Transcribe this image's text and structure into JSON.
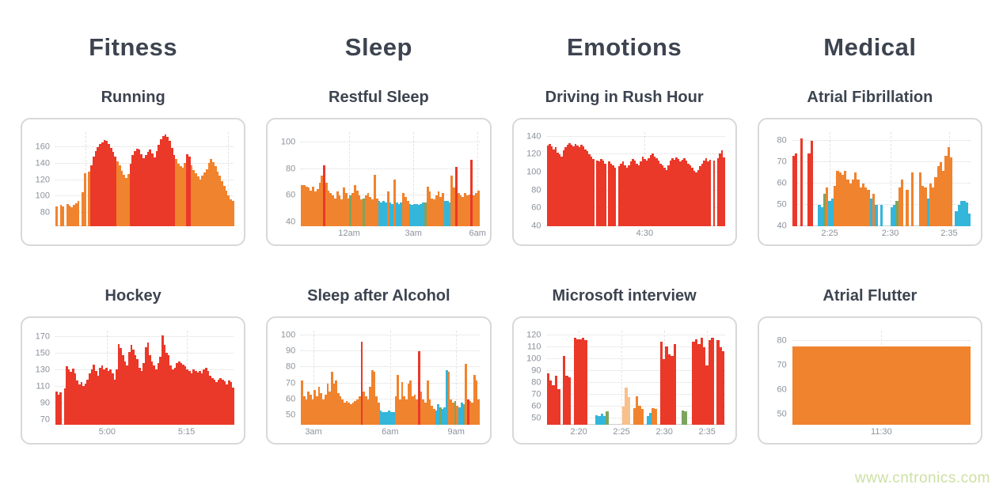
{
  "page": {
    "watermark": "www.cntronics.com",
    "watermark_color": "#cde0a4",
    "background": "#ffffff"
  },
  "categories": [
    "Fitness",
    "Sleep",
    "Emotions",
    "Medical"
  ],
  "colors": {
    "r": "#ea3829",
    "o": "#f0832e",
    "b": "#33b6da",
    "t": "#7da45f",
    "l": "#f8c08a",
    "grid": "#d9d9d9",
    "axis_label": "#8b929b",
    "title": "#3d4450",
    "card_border": "#d8d8d8"
  },
  "chart_data": [
    {
      "type": "bar",
      "title": "Running",
      "category": "Fitness",
      "ylim": [
        64,
        178
      ],
      "yticks": [
        80,
        100,
        120,
        140,
        160
      ],
      "xticks": [
        {
          "pos": 0.17,
          "label": ""
        },
        {
          "pos": 0.97,
          "label": ""
        }
      ],
      "values": [
        88,
        null,
        90,
        88,
        null,
        91,
        89,
        87,
        90,
        92,
        95,
        null,
        105,
        128,
        null,
        130,
        138,
        148,
        155,
        160,
        164,
        166,
        168,
        167,
        164,
        159,
        154,
        148,
        143,
        138,
        131,
        126,
        122,
        127,
        140,
        150,
        155,
        158,
        157,
        151,
        146,
        150,
        154,
        157,
        152,
        147,
        155,
        163,
        169,
        173,
        175,
        172,
        167,
        159,
        150,
        145,
        140,
        137,
        135,
        141,
        151,
        148,
        138,
        132,
        128,
        124,
        121,
        125,
        129,
        133,
        141,
        145,
        142,
        137,
        130,
        125,
        119,
        113,
        107,
        101,
        97,
        95
      ],
      "bar_colors": "o.oo.oooooo.oo.orrrrrrrrrrrroooooorrrrrrrrrrrrrrrrrrrrrooooorroooooooooooooooooooo"
    },
    {
      "type": "bar",
      "title": "Hockey",
      "category": "Fitness",
      "ylim": [
        64,
        178
      ],
      "yticks": [
        70,
        90,
        110,
        130,
        150,
        170
      ],
      "xticks": [
        {
          "pos": 0.29,
          "label": "5:00"
        },
        {
          "pos": 0.735,
          "label": "5:15"
        }
      ],
      "values": [
        104,
        100,
        103,
        null,
        108,
        135,
        131,
        128,
        132,
        126,
        118,
        113,
        116,
        111,
        114,
        119,
        126,
        131,
        137,
        129,
        123,
        133,
        136,
        131,
        133,
        129,
        131,
        126,
        119,
        131,
        162,
        157,
        148,
        141,
        136,
        152,
        161,
        155,
        148,
        144,
        133,
        129,
        139,
        158,
        164,
        148,
        141,
        136,
        131,
        139,
        146,
        172,
        161,
        151,
        148,
        136,
        131,
        133,
        139,
        141,
        139,
        137,
        135,
        131,
        129,
        126,
        131,
        129,
        127,
        129,
        126,
        131,
        133,
        129,
        123,
        121,
        119,
        116,
        119,
        121,
        119,
        117,
        113,
        118,
        116,
        109
      ],
      "bar_colors": "rrr.rrrrrrrrrrrrrrrrrrrrrrrrrrrrrrrrrrrrrrrrrrrrrrrrrrrrrrrrrrrrrrrrrrrrrrrrrrrrrrrrrr"
    },
    {
      "type": "bar",
      "title": "Restful Sleep",
      "category": "Sleep",
      "ylim": [
        37,
        108
      ],
      "yticks": [
        40,
        60,
        80,
        100
      ],
      "xticks": [
        {
          "pos": 0.27,
          "label": "12am"
        },
        {
          "pos": 0.63,
          "label": "3am"
        },
        {
          "pos": 0.99,
          "label": "6am"
        }
      ],
      "values": [
        68,
        68,
        67,
        66,
        64,
        67,
        63,
        65,
        70,
        75,
        83,
        70,
        64,
        62,
        60,
        58,
        63,
        60,
        57,
        66,
        62,
        58,
        60,
        62,
        68,
        64,
        60,
        57,
        58,
        60,
        62,
        59,
        57,
        76,
        58,
        56,
        55,
        56,
        55,
        63,
        55,
        54,
        72,
        55,
        54,
        55,
        62,
        59,
        56,
        54,
        53,
        54,
        54,
        53,
        54,
        55,
        55,
        67,
        63,
        58,
        57,
        60,
        63,
        59,
        62,
        56,
        56,
        55,
        75,
        66,
        82,
        62,
        60,
        59,
        62,
        60,
        61,
        87,
        60,
        62,
        64
      ],
      "bar_colors": "ooooooooooroooooooooootoooootoooooobbbbobbobbbooobbbbbbbtoooooooobbbooroooooorooo"
    },
    {
      "type": "bar",
      "title": "Sleep after Alcohol",
      "category": "Sleep",
      "ylim": [
        44,
        103
      ],
      "yticks": [
        50,
        60,
        70,
        80,
        90,
        100
      ],
      "xticks": [
        {
          "pos": 0.07,
          "label": "3am"
        },
        {
          "pos": 0.5,
          "label": "6am"
        },
        {
          "pos": 0.87,
          "label": "9am"
        }
      ],
      "values": [
        72,
        62,
        60,
        65,
        63,
        60,
        66,
        62,
        68,
        64,
        60,
        63,
        70,
        65,
        77,
        70,
        72,
        64,
        62,
        60,
        58,
        59,
        58,
        57,
        58,
        59,
        60,
        62,
        96,
        65,
        62,
        60,
        68,
        78,
        77,
        62,
        58,
        53,
        52,
        52,
        52,
        53,
        52,
        52,
        62,
        75,
        60,
        71,
        62,
        60,
        70,
        72,
        62,
        63,
        60,
        90,
        65,
        60,
        58,
        72,
        60,
        56,
        54,
        53,
        57,
        55,
        54,
        55,
        78,
        77,
        60,
        58,
        59,
        56,
        55,
        58,
        57,
        82,
        60,
        59,
        58,
        75,
        72,
        60
      ],
      "bar_colors": "ooooooooooooooooooooooooooooroooooooobbbbbbbooooooooooorooooooobbtbbboootobbtoroooooo"
    },
    {
      "type": "bar",
      "title": "Driving in Rush Hour",
      "category": "Emotions",
      "ylim": [
        40,
        145
      ],
      "yticks": [
        40,
        60,
        80,
        100,
        120,
        140
      ],
      "xticks": [
        {
          "pos": 0.55,
          "label": "4:30"
        }
      ],
      "values": [
        130,
        132,
        129,
        126,
        128,
        122,
        120,
        118,
        125,
        128,
        131,
        133,
        131,
        129,
        132,
        130,
        128,
        131,
        129,
        126,
        124,
        120,
        118,
        115,
        null,
        113,
        112,
        115,
        113,
        110,
        null,
        112,
        110,
        108,
        105,
        null,
        107,
        110,
        112,
        108,
        105,
        108,
        112,
        115,
        113,
        110,
        108,
        112,
        118,
        115,
        113,
        116,
        119,
        121,
        118,
        116,
        113,
        110,
        108,
        105,
        103,
        108,
        113,
        116,
        114,
        117,
        115,
        112,
        114,
        116,
        113,
        110,
        108,
        105,
        102,
        100,
        103,
        107,
        110,
        113,
        116,
        112,
        114,
        null,
        113,
        null,
        116,
        121,
        125,
        117
      ],
      "bar_colors": "rrrrrrrrrrrrrrrrrrrrrrrr.rrrrr.rrrr.rrrrrrrrrrrrrrrrrrrrrrrrrrrrrrrrrrrrrrrrrrrrrrr.r.rrrr"
    },
    {
      "type": "bar",
      "title": "Microsoft interview",
      "category": "Emotions",
      "ylim": [
        45,
        124
      ],
      "yticks": [
        50,
        60,
        70,
        80,
        90,
        100,
        110,
        120
      ],
      "xticks": [
        {
          "pos": 0.18,
          "label": "2:20"
        },
        {
          "pos": 0.42,
          "label": "2:25"
        },
        {
          "pos": 0.66,
          "label": "2:30"
        },
        {
          "pos": 0.9,
          "label": "2:35"
        }
      ],
      "values": [
        88,
        82,
        78,
        86,
        75,
        null,
        103,
        86,
        85,
        null,
        118,
        117,
        117,
        118,
        116,
        null,
        null,
        null,
        53,
        52,
        54,
        52,
        56,
        null,
        null,
        null,
        null,
        null,
        60,
        76,
        68,
        null,
        59,
        69,
        61,
        58,
        null,
        52,
        55,
        59,
        58,
        null,
        115,
        100,
        111,
        104,
        103,
        113,
        null,
        null,
        57,
        56,
        null,
        null,
        115,
        117,
        113,
        118,
        110,
        95,
        116,
        118,
        null,
        116,
        110,
        107
      ],
      "bar_colors": "rrrrr.rrr.rrrrr...bbbbt.....lll.oooo.bboo.rrrrrr..tt..rrrrrrrr.rrr"
    },
    {
      "type": "bar",
      "title": "Atrial Fibrillation",
      "category": "Medical",
      "ylim": [
        40,
        84
      ],
      "yticks": [
        40,
        50,
        60,
        70,
        80
      ],
      "xticks": [
        {
          "pos": 0.21,
          "label": "2:25"
        },
        {
          "pos": 0.55,
          "label": "2:30"
        },
        {
          "pos": 0.88,
          "label": "2:35"
        }
      ],
      "values": [
        73,
        74,
        null,
        81,
        null,
        null,
        74,
        80,
        null,
        null,
        50,
        49,
        55,
        58,
        52,
        53,
        59,
        66,
        65,
        64,
        66,
        62,
        60,
        62,
        65,
        62,
        58,
        60,
        58,
        57,
        53,
        55,
        50,
        null,
        50,
        null,
        null,
        null,
        49,
        50,
        52,
        58,
        62,
        null,
        57,
        null,
        65,
        null,
        null,
        65,
        59,
        58,
        53,
        60,
        58,
        63,
        68,
        70,
        66,
        73,
        77,
        72,
        null,
        47,
        50,
        52,
        52,
        51,
        46
      ],
      "bar_colors": "rr.r..rr..bbtobboooooooooooooobob.b...bbtoo.o.o..ooobooooooooo.bbbbbb"
    },
    {
      "type": "bar",
      "title": "Atrial Flutter",
      "category": "Medical",
      "ylim": [
        46,
        84
      ],
      "yticks": [
        50,
        60,
        70,
        80
      ],
      "xticks": [
        {
          "pos": 0.5,
          "label": "11:30"
        }
      ],
      "values": [
        77.5,
        77.5,
        77.5,
        77.5,
        77.5,
        77.5,
        77.5,
        77.5,
        77.5,
        77.5,
        77.5,
        77.5,
        77.5,
        77.5,
        77.5,
        77.5,
        77.5,
        77.5,
        77.5,
        77.5,
        77.5,
        77.5,
        77.5,
        77.5,
        77.5,
        77.5,
        77.5,
        77.5,
        77.5,
        77.5,
        77.5,
        77.5,
        77.5,
        77.5,
        77.5,
        77.5,
        77.5,
        77.5,
        77.5,
        77.5,
        77.5,
        77.5,
        77.5,
        77.5,
        77.5,
        77.5,
        77.5,
        77.5
      ],
      "bar_colors": "oooooooooooooooooooooooooooooooooooooooooooooooo"
    }
  ]
}
